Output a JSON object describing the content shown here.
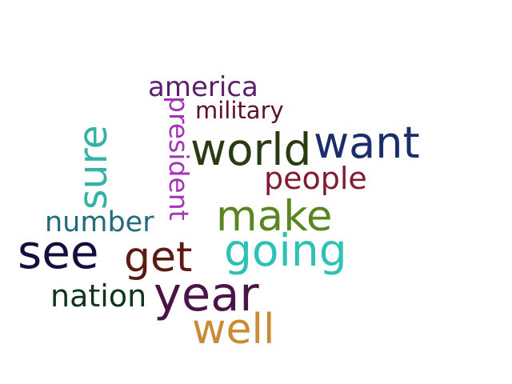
{
  "words": {
    "america": {
      "text": "america",
      "color": "#5b1f6b"
    },
    "military": {
      "text": "military",
      "color": "#5b1220"
    },
    "president": {
      "text": "president",
      "color": "#a533b8"
    },
    "sure": {
      "text": "sure",
      "color": "#35b1a6"
    },
    "world": {
      "text": "world",
      "color": "#2a3b13"
    },
    "want": {
      "text": "want",
      "color": "#1b2d6d"
    },
    "people": {
      "text": "people",
      "color": "#7f1c34"
    },
    "number": {
      "text": "number",
      "color": "#216b7c"
    },
    "make": {
      "text": "make",
      "color": "#5b8523"
    },
    "see": {
      "text": "see",
      "color": "#120e3e"
    },
    "get": {
      "text": "get",
      "color": "#5c1a12"
    },
    "going": {
      "text": "going",
      "color": "#2ec2b6"
    },
    "nation": {
      "text": "nation",
      "color": "#0f331b"
    },
    "year": {
      "text": "year",
      "color": "#4a1447"
    },
    "well": {
      "text": "well",
      "color": "#c98b35"
    }
  }
}
